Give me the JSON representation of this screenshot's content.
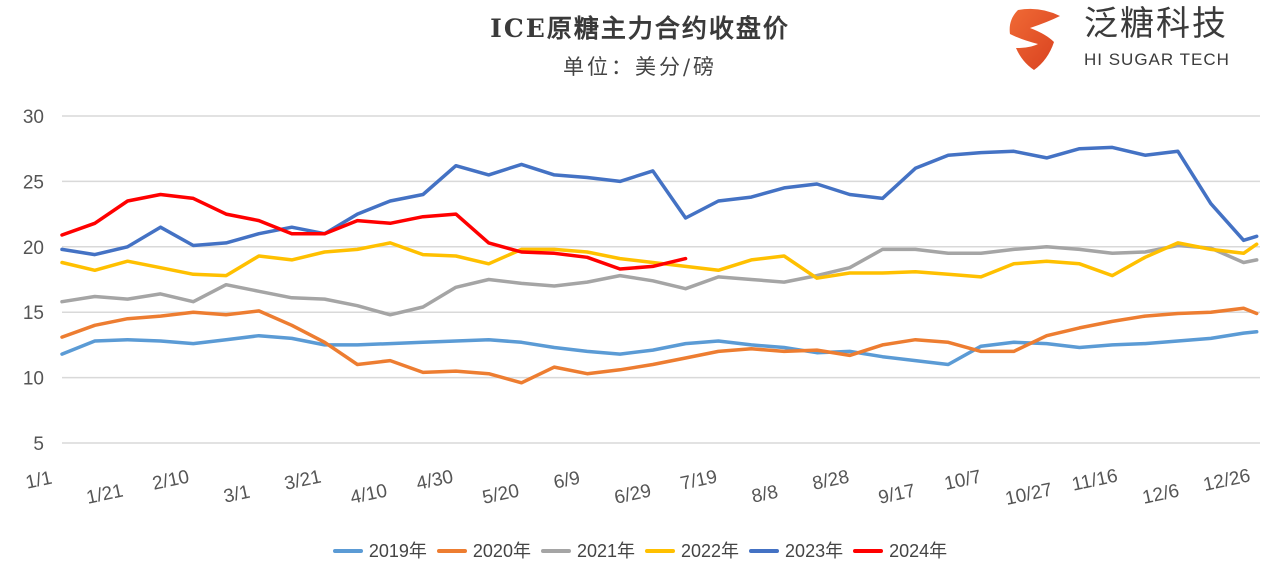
{
  "header": {
    "title": "ICE原糖主力合约收盘价",
    "subtitle": "单位：美分/磅"
  },
  "logo": {
    "name_cn": "泛糖科技",
    "name_en": "HI SUGAR TECH",
    "icon": "shield-s-logo-icon",
    "color": "#e8552a"
  },
  "chart_data": {
    "type": "line",
    "title": "ICE原糖主力合约收盘价",
    "subtitle": "单位：美分/磅",
    "xlabel": "",
    "ylabel": "",
    "ylim": [
      5,
      30
    ],
    "yticks": [
      5,
      10,
      15,
      20,
      25,
      30
    ],
    "grid": true,
    "legend_position": "bottom",
    "x_ticks": [
      "1/1",
      "1/21",
      "2/10",
      "3/1",
      "3/21",
      "4/10",
      "4/30",
      "5/20",
      "6/9",
      "6/29",
      "7/19",
      "8/8",
      "8/28",
      "9/17",
      "10/7",
      "10/27",
      "11/16",
      "12/6",
      "12/26"
    ],
    "x_day_of_year": [
      0,
      10,
      20,
      30,
      40,
      50,
      60,
      70,
      80,
      90,
      100,
      110,
      120,
      130,
      140,
      150,
      160,
      170,
      180,
      190,
      200,
      210,
      220,
      230,
      240,
      250,
      260,
      270,
      280,
      290,
      300,
      310,
      320,
      330,
      340,
      350,
      360,
      364
    ],
    "series": [
      {
        "name": "2019年",
        "color": "#5b9bd5",
        "values": [
          11.8,
          12.8,
          12.9,
          12.8,
          12.6,
          12.9,
          13.2,
          13.0,
          12.5,
          12.5,
          12.6,
          12.7,
          12.8,
          12.9,
          12.7,
          12.3,
          12.0,
          11.8,
          12.1,
          12.6,
          12.8,
          12.5,
          12.3,
          11.9,
          12.0,
          11.6,
          11.3,
          11.0,
          12.4,
          12.7,
          12.6,
          12.3,
          12.5,
          12.6,
          12.8,
          13.0,
          13.4,
          13.5
        ]
      },
      {
        "name": "2020年",
        "color": "#ed7d31",
        "values": [
          13.1,
          14.0,
          14.5,
          14.7,
          15.0,
          14.8,
          15.1,
          14.0,
          12.7,
          11.0,
          11.3,
          10.4,
          10.5,
          10.3,
          9.6,
          10.8,
          10.3,
          10.6,
          11.0,
          11.5,
          12.0,
          12.2,
          12.0,
          12.1,
          11.7,
          12.5,
          12.9,
          12.7,
          12.0,
          12.0,
          13.2,
          13.8,
          14.3,
          14.7,
          14.9,
          15.0,
          15.3,
          14.9
        ]
      },
      {
        "name": "2021年",
        "color": "#a5a5a5",
        "values": [
          15.8,
          16.2,
          16.0,
          16.4,
          15.8,
          17.1,
          16.6,
          16.1,
          16.0,
          15.5,
          14.8,
          15.4,
          16.9,
          17.5,
          17.2,
          17.0,
          17.3,
          17.8,
          17.4,
          16.8,
          17.7,
          17.5,
          17.3,
          17.8,
          18.4,
          19.8,
          19.8,
          19.5,
          19.5,
          19.8,
          20.0,
          19.8,
          19.5,
          19.6,
          20.1,
          19.9,
          18.8,
          19.0
        ]
      },
      {
        "name": "2022年",
        "color": "#ffc000",
        "values": [
          18.8,
          18.2,
          18.9,
          18.4,
          17.9,
          17.8,
          19.3,
          19.0,
          19.6,
          19.8,
          20.3,
          19.4,
          19.3,
          18.7,
          19.8,
          19.8,
          19.6,
          19.1,
          18.8,
          18.5,
          18.2,
          19.0,
          19.3,
          17.6,
          18.0,
          18.0,
          18.1,
          17.9,
          17.7,
          18.7,
          18.9,
          18.7,
          17.8,
          19.2,
          20.3,
          19.8,
          19.5,
          20.2
        ]
      },
      {
        "name": "2023年",
        "color": "#4472c4",
        "values": [
          19.8,
          19.4,
          20.0,
          21.5,
          20.1,
          20.3,
          21.0,
          21.5,
          21.0,
          22.5,
          23.5,
          24.0,
          26.2,
          25.5,
          26.3,
          25.5,
          25.3,
          25.0,
          25.8,
          22.2,
          23.5,
          23.8,
          24.5,
          24.8,
          24.0,
          23.7,
          26.0,
          27.0,
          27.2,
          27.3,
          26.8,
          27.5,
          27.6,
          27.0,
          27.3,
          23.3,
          20.5,
          20.8
        ]
      },
      {
        "name": "2024年",
        "color": "#ff0000",
        "values": [
          20.9,
          21.8,
          23.5,
          24.0,
          23.7,
          22.5,
          22.0,
          21.0,
          21.0,
          22.0,
          21.8,
          22.3,
          22.5,
          20.3,
          19.6,
          19.5,
          19.2,
          18.3,
          18.5,
          19.1
        ]
      }
    ]
  },
  "legend": [
    {
      "label": "2019年",
      "color": "#5b9bd5"
    },
    {
      "label": "2020年",
      "color": "#ed7d31"
    },
    {
      "label": "2021年",
      "color": "#a5a5a5"
    },
    {
      "label": "2022年",
      "color": "#ffc000"
    },
    {
      "label": "2023年",
      "color": "#4472c4"
    },
    {
      "label": "2024年",
      "color": "#ff0000"
    }
  ]
}
